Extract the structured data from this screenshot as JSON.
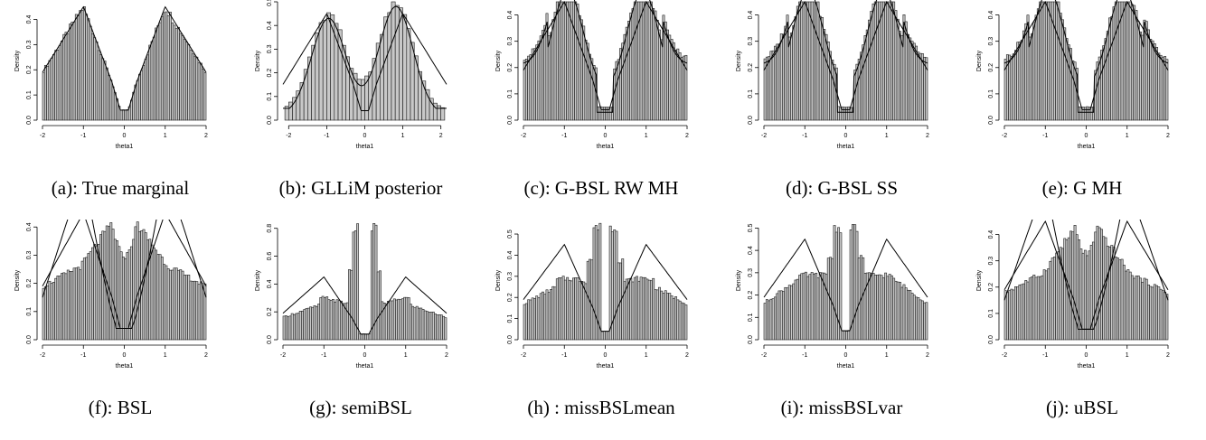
{
  "colors": {
    "bar_fill": "#c8c8c8",
    "bar_stroke": "#1a1a1a",
    "curve": "#000000",
    "axis": "#000000"
  },
  "panels": [
    {
      "caption": "(a): True marginal",
      "chart_data": {
        "type": "bar",
        "xlabel": "theta1",
        "ylabel": "Density",
        "xlim": [
          -2,
          2
        ],
        "ylim": [
          0,
          0.47
        ],
        "xticks": [
          -2,
          -1,
          0,
          1,
          2
        ],
        "yticks": [
          0,
          0.1,
          0.2,
          0.3,
          0.4
        ],
        "ytick_labels": [
          "0.0",
          "0.1",
          "0.2",
          "0.3",
          "0.4"
        ],
        "bin_range": [
          -2,
          2
        ],
        "bin_count": 80,
        "histogram_shape": "true",
        "curves": [
          "true_density"
        ]
      }
    },
    {
      "caption": "(b): GLLiM posterior",
      "chart_data": {
        "type": "bar",
        "xlabel": "theta1",
        "ylabel": "Density",
        "xlim": [
          -2.15,
          2.15
        ],
        "ylim": [
          0,
          0.5
        ],
        "xticks": [
          -2,
          -1,
          0,
          1,
          2
        ],
        "yticks": [
          0,
          0.1,
          0.2,
          0.3,
          0.4,
          0.5
        ],
        "ytick_labels": [
          "0.0",
          "0.1",
          "0.2",
          "0.3",
          "0.4",
          "0.5"
        ],
        "bin_range": [
          -2.1,
          2.1
        ],
        "bin_count": 42,
        "histogram_shape": "gllim",
        "curves": [
          "true_density",
          "gllim_line"
        ]
      }
    },
    {
      "caption": "(c): G-BSL RW MH",
      "chart_data": {
        "type": "bar",
        "xlabel": "theta1",
        "ylabel": "Density",
        "xlim": [
          -2,
          2
        ],
        "ylim": [
          0,
          0.45
        ],
        "xticks": [
          -2,
          -1,
          0,
          1,
          2
        ],
        "yticks": [
          0,
          0.1,
          0.2,
          0.3,
          0.4
        ],
        "ytick_labels": [
          "0.0",
          "0.1",
          "0.2",
          "0.3",
          "0.4"
        ],
        "bin_range": [
          -2,
          2
        ],
        "bin_count": 80,
        "histogram_shape": "gbsl",
        "curves": [
          "true_density",
          "gbsl_line"
        ]
      }
    },
    {
      "caption": "(d): G-BSL SS",
      "chart_data": {
        "type": "bar",
        "xlabel": "theta1",
        "ylabel": "Density",
        "xlim": [
          -2,
          2
        ],
        "ylim": [
          0,
          0.45
        ],
        "xticks": [
          -2,
          -1,
          0,
          1,
          2
        ],
        "yticks": [
          0,
          0.1,
          0.2,
          0.3,
          0.4
        ],
        "ytick_labels": [
          "0.0",
          "0.1",
          "0.2",
          "0.3",
          "0.4"
        ],
        "bin_range": [
          -2,
          2
        ],
        "bin_count": 80,
        "histogram_shape": "gbsl",
        "curves": [
          "true_density",
          "gbsl_line"
        ]
      }
    },
    {
      "caption": "(e): G MH",
      "chart_data": {
        "type": "bar",
        "xlabel": "theta1",
        "ylabel": "Density",
        "xlim": [
          -2,
          2
        ],
        "ylim": [
          0,
          0.45
        ],
        "xticks": [
          -2,
          -1,
          0,
          1,
          2
        ],
        "yticks": [
          0,
          0.1,
          0.2,
          0.3,
          0.4
        ],
        "ytick_labels": [
          "0.0",
          "0.1",
          "0.2",
          "0.3",
          "0.4"
        ],
        "bin_range": [
          -2,
          2
        ],
        "bin_count": 80,
        "histogram_shape": "gbsl",
        "curves": [
          "true_density",
          "gbsl_line"
        ]
      }
    },
    {
      "caption": "(f): BSL",
      "chart_data": {
        "type": "bar",
        "xlabel": "theta1",
        "ylabel": "Density",
        "xlim": [
          -2,
          2
        ],
        "ylim": [
          0,
          0.42
        ],
        "xticks": [
          -2,
          -1,
          0,
          1,
          2
        ],
        "yticks": [
          0,
          0.1,
          0.2,
          0.3,
          0.4
        ],
        "ytick_labels": [
          "0.0",
          "0.1",
          "0.2",
          "0.3",
          "0.4"
        ],
        "bin_range": [
          -2,
          2
        ],
        "bin_count": 80,
        "histogram_shape": "bsl",
        "curves": [
          "true_density",
          "narrow_line"
        ]
      }
    },
    {
      "caption": "(g): semiBSL",
      "chart_data": {
        "type": "bar",
        "xlabel": "theta1",
        "ylabel": "Density",
        "xlim": [
          -2,
          2
        ],
        "ylim": [
          0,
          0.85
        ],
        "xticks": [
          -2,
          -1,
          0,
          1,
          2
        ],
        "yticks": [
          0,
          0.2,
          0.4,
          0.6,
          0.8
        ],
        "ytick_labels": [
          "0.0",
          "0.2",
          "0.4",
          "0.6",
          "0.8"
        ],
        "bin_range": [
          -2,
          2
        ],
        "bin_count": 80,
        "histogram_shape": "semi",
        "curves": [
          "true_density"
        ]
      }
    },
    {
      "caption": "(h) : missBSLmean",
      "chart_data": {
        "type": "bar",
        "xlabel": "theta1",
        "ylabel": "Density",
        "xlim": [
          -2,
          2
        ],
        "ylim": [
          0,
          0.56
        ],
        "xticks": [
          -2,
          -1,
          0,
          1,
          2
        ],
        "yticks": [
          0,
          0.1,
          0.2,
          0.3,
          0.4,
          0.5
        ],
        "ytick_labels": [
          "0.0",
          "0.1",
          "0.2",
          "0.3",
          "0.4",
          "0.5"
        ],
        "bin_range": [
          -2,
          2
        ],
        "bin_count": 80,
        "histogram_shape": "missmean",
        "curves": [
          "true_density"
        ]
      }
    },
    {
      "caption": "(i): missBSLvar",
      "chart_data": {
        "type": "bar",
        "xlabel": "theta1",
        "ylabel": "Density",
        "xlim": [
          -2,
          2
        ],
        "ylim": [
          0,
          0.53
        ],
        "xticks": [
          -2,
          -1,
          0,
          1,
          2
        ],
        "yticks": [
          0,
          0.1,
          0.2,
          0.3,
          0.4,
          0.5
        ],
        "ytick_labels": [
          "0.0",
          "0.1",
          "0.2",
          "0.3",
          "0.4",
          "0.5"
        ],
        "bin_range": [
          -2,
          2
        ],
        "bin_count": 80,
        "histogram_shape": "missvar",
        "curves": [
          "true_density"
        ]
      }
    },
    {
      "caption": "(j): uBSL",
      "chart_data": {
        "type": "bar",
        "xlabel": "theta1",
        "ylabel": "Density",
        "xlim": [
          -2,
          2
        ],
        "ylim": [
          0,
          0.45
        ],
        "xticks": [
          -2,
          -1,
          0,
          1,
          2
        ],
        "yticks": [
          0,
          0.1,
          0.2,
          0.3,
          0.4
        ],
        "ytick_labels": [
          "0.0",
          "0.1",
          "0.2",
          "0.3",
          "0.4"
        ],
        "bin_range": [
          -2,
          2
        ],
        "bin_count": 80,
        "histogram_shape": "ubsl",
        "curves": [
          "true_density",
          "narrow_line"
        ]
      }
    }
  ]
}
